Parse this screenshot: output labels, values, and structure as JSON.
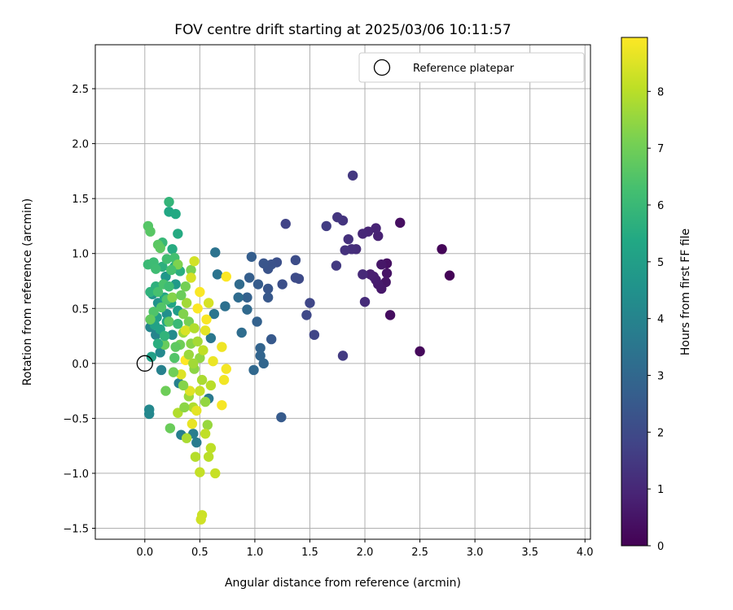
{
  "chart_data": {
    "type": "scatter",
    "title": "FOV centre drift starting at 2025/03/06 10:11:57",
    "xlabel": "Angular distance from reference (arcmin)",
    "ylabel": "Rotation from reference (arcmin)",
    "xlim": [
      -0.45,
      4.05
    ],
    "ylim": [
      -1.6,
      2.9
    ],
    "xticks": [
      0.0,
      0.5,
      1.0,
      1.5,
      2.0,
      2.5,
      3.0,
      3.5,
      4.0
    ],
    "xtick_labels": [
      "0.0",
      "0.5",
      "1.0",
      "1.5",
      "2.0",
      "2.5",
      "3.0",
      "3.5",
      "4.0"
    ],
    "yticks": [
      -1.5,
      -1.0,
      -0.5,
      0.0,
      0.5,
      1.0,
      1.5,
      2.0,
      2.5
    ],
    "ytick_labels": [
      "−1.5",
      "−1.0",
      "−0.5",
      "0.0",
      "0.5",
      "1.0",
      "1.5",
      "2.0",
      "2.5"
    ],
    "grid": true,
    "legend": {
      "position": "top-right",
      "entries": [
        "Reference platepar"
      ]
    },
    "colorbar": {
      "label": "Hours from first FF file",
      "colormap": "viridis",
      "range": [
        0,
        8.95
      ],
      "ticks": [
        0,
        1,
        2,
        3,
        4,
        5,
        6,
        7,
        8
      ],
      "tick_labels": [
        "0",
        "1",
        "2",
        "3",
        "4",
        "5",
        "6",
        "7",
        "8"
      ]
    },
    "reference_point": {
      "name": "Reference platepar",
      "x": 0.0,
      "y": 0.0
    },
    "points": [
      {
        "x": 2.77,
        "y": 0.8,
        "h": 0.05
      },
      {
        "x": 2.7,
        "y": 1.04,
        "h": 0.1
      },
      {
        "x": 2.5,
        "y": 0.11,
        "h": 0.2
      },
      {
        "x": 2.23,
        "y": 0.44,
        "h": 0.3
      },
      {
        "x": 2.32,
        "y": 1.28,
        "h": 0.35
      },
      {
        "x": 2.2,
        "y": 0.91,
        "h": 0.4
      },
      {
        "x": 2.2,
        "y": 0.82,
        "h": 0.45
      },
      {
        "x": 2.19,
        "y": 0.74,
        "h": 0.5
      },
      {
        "x": 2.15,
        "y": 0.9,
        "h": 0.55
      },
      {
        "x": 2.15,
        "y": 0.68,
        "h": 0.6
      },
      {
        "x": 2.12,
        "y": 0.72,
        "h": 0.65
      },
      {
        "x": 2.1,
        "y": 0.76,
        "h": 0.7
      },
      {
        "x": 2.08,
        "y": 0.79,
        "h": 0.75
      },
      {
        "x": 2.05,
        "y": 0.81,
        "h": 0.8
      },
      {
        "x": 2.12,
        "y": 1.16,
        "h": 0.85
      },
      {
        "x": 2.1,
        "y": 1.23,
        "h": 0.9
      },
      {
        "x": 2.03,
        "y": 1.2,
        "h": 0.95
      },
      {
        "x": 1.98,
        "y": 1.18,
        "h": 1.0
      },
      {
        "x": 1.98,
        "y": 0.81,
        "h": 1.05
      },
      {
        "x": 2.0,
        "y": 0.56,
        "h": 1.1
      },
      {
        "x": 1.92,
        "y": 1.04,
        "h": 1.15
      },
      {
        "x": 1.88,
        "y": 1.04,
        "h": 1.2
      },
      {
        "x": 1.85,
        "y": 1.13,
        "h": 1.25
      },
      {
        "x": 1.82,
        "y": 1.03,
        "h": 1.3
      },
      {
        "x": 1.8,
        "y": 1.3,
        "h": 1.35
      },
      {
        "x": 1.75,
        "y": 1.33,
        "h": 1.4
      },
      {
        "x": 1.89,
        "y": 1.71,
        "h": 1.45
      },
      {
        "x": 1.74,
        "y": 0.89,
        "h": 1.5
      },
      {
        "x": 1.8,
        "y": 0.07,
        "h": 1.55
      },
      {
        "x": 1.65,
        "y": 1.25,
        "h": 1.6
      },
      {
        "x": 1.28,
        "y": 1.27,
        "h": 1.8
      },
      {
        "x": 1.54,
        "y": 0.26,
        "h": 1.85
      },
      {
        "x": 1.5,
        "y": 0.55,
        "h": 1.9
      },
      {
        "x": 1.47,
        "y": 0.44,
        "h": 1.95
      },
      {
        "x": 1.4,
        "y": 0.77,
        "h": 2.0
      },
      {
        "x": 1.37,
        "y": 0.78,
        "h": 2.05
      },
      {
        "x": 1.37,
        "y": 0.94,
        "h": 2.1
      },
      {
        "x": 1.25,
        "y": 0.72,
        "h": 2.15
      },
      {
        "x": 1.2,
        "y": 0.92,
        "h": 2.2
      },
      {
        "x": 1.15,
        "y": 0.9,
        "h": 2.25
      },
      {
        "x": 1.12,
        "y": 0.86,
        "h": 2.3
      },
      {
        "x": 1.08,
        "y": 0.91,
        "h": 2.35
      },
      {
        "x": 1.12,
        "y": 0.68,
        "h": 2.4
      },
      {
        "x": 1.12,
        "y": 0.6,
        "h": 2.45
      },
      {
        "x": 1.15,
        "y": 0.22,
        "h": 2.5
      },
      {
        "x": 1.24,
        "y": -0.49,
        "h": 2.55
      },
      {
        "x": 1.03,
        "y": 0.72,
        "h": 2.6
      },
      {
        "x": 0.97,
        "y": 0.97,
        "h": 2.65
      },
      {
        "x": 0.95,
        "y": 0.78,
        "h": 2.7
      },
      {
        "x": 0.93,
        "y": 0.6,
        "h": 2.75
      },
      {
        "x": 1.02,
        "y": 0.38,
        "h": 2.8
      },
      {
        "x": 1.05,
        "y": 0.14,
        "h": 2.85
      },
      {
        "x": 1.05,
        "y": 0.07,
        "h": 2.9
      },
      {
        "x": 1.08,
        "y": 0.0,
        "h": 2.95
      },
      {
        "x": 0.99,
        "y": -0.06,
        "h": 3.0
      },
      {
        "x": 0.93,
        "y": 0.49,
        "h": 3.05
      },
      {
        "x": 0.86,
        "y": 0.72,
        "h": 3.1
      },
      {
        "x": 0.85,
        "y": 0.6,
        "h": 3.15
      },
      {
        "x": 0.88,
        "y": 0.28,
        "h": 3.2
      },
      {
        "x": 0.73,
        "y": 0.52,
        "h": 3.3
      },
      {
        "x": 0.64,
        "y": 1.01,
        "h": 3.4
      },
      {
        "x": 0.66,
        "y": 0.81,
        "h": 3.45
      },
      {
        "x": 0.63,
        "y": 0.45,
        "h": 3.5
      },
      {
        "x": 0.6,
        "y": 0.23,
        "h": 3.55
      },
      {
        "x": 0.58,
        "y": -0.32,
        "h": 3.6
      },
      {
        "x": 0.47,
        "y": -0.72,
        "h": 3.7
      },
      {
        "x": 0.44,
        "y": -0.64,
        "h": 3.75
      },
      {
        "x": 0.33,
        "y": -0.65,
        "h": 3.8
      },
      {
        "x": 0.31,
        "y": -0.18,
        "h": 3.85
      },
      {
        "x": 0.15,
        "y": -0.06,
        "h": 3.9
      },
      {
        "x": 0.1,
        "y": 0.26,
        "h": 4.0
      },
      {
        "x": 0.05,
        "y": 0.33,
        "h": 4.05
      },
      {
        "x": 0.04,
        "y": -0.46,
        "h": 4.1
      },
      {
        "x": 0.04,
        "y": -0.42,
        "h": 4.15
      },
      {
        "x": 0.14,
        "y": 0.1,
        "h": 4.2
      },
      {
        "x": 0.25,
        "y": 0.26,
        "h": 4.3
      },
      {
        "x": 0.2,
        "y": 0.45,
        "h": 4.4
      },
      {
        "x": 0.12,
        "y": 0.55,
        "h": 4.5
      },
      {
        "x": 0.07,
        "y": 0.63,
        "h": 4.6
      },
      {
        "x": 0.19,
        "y": 0.79,
        "h": 4.7
      },
      {
        "x": 0.28,
        "y": 0.72,
        "h": 4.8
      },
      {
        "x": 0.3,
        "y": 0.48,
        "h": 4.9
      },
      {
        "x": 0.11,
        "y": 0.42,
        "h": 5.0
      },
      {
        "x": 0.06,
        "y": 0.06,
        "h": 5.05
      },
      {
        "x": 0.09,
        "y": 0.35,
        "h": 5.1
      },
      {
        "x": 0.14,
        "y": 0.31,
        "h": 5.15
      },
      {
        "x": 0.2,
        "y": 0.38,
        "h": 5.2
      },
      {
        "x": 0.24,
        "y": 0.55,
        "h": 5.25
      },
      {
        "x": 0.18,
        "y": 0.6,
        "h": 5.3
      },
      {
        "x": 0.22,
        "y": 1.38,
        "h": 5.35
      },
      {
        "x": 0.28,
        "y": 1.36,
        "h": 5.4
      },
      {
        "x": 0.3,
        "y": 1.18,
        "h": 5.45
      },
      {
        "x": 0.25,
        "y": 1.04,
        "h": 5.5
      },
      {
        "x": 0.27,
        "y": 0.88,
        "h": 5.55
      },
      {
        "x": 0.32,
        "y": 0.84,
        "h": 5.6
      },
      {
        "x": 0.16,
        "y": 0.88,
        "h": 5.65
      },
      {
        "x": 0.1,
        "y": 0.7,
        "h": 5.7
      },
      {
        "x": 0.05,
        "y": 0.65,
        "h": 5.75
      },
      {
        "x": 0.22,
        "y": 1.47,
        "h": 5.85
      },
      {
        "x": 0.16,
        "y": 1.1,
        "h": 5.95
      },
      {
        "x": 0.03,
        "y": 0.9,
        "h": 6.05
      },
      {
        "x": 0.08,
        "y": 0.92,
        "h": 6.1
      },
      {
        "x": 0.1,
        "y": 0.86,
        "h": 6.15
      },
      {
        "x": 0.2,
        "y": 0.95,
        "h": 6.2
      },
      {
        "x": 0.27,
        "y": 0.96,
        "h": 6.25
      },
      {
        "x": 0.12,
        "y": 0.65,
        "h": 6.3
      },
      {
        "x": 0.17,
        "y": 0.72,
        "h": 6.35
      },
      {
        "x": 0.2,
        "y": 0.58,
        "h": 6.4
      },
      {
        "x": 0.08,
        "y": 0.47,
        "h": 6.45
      },
      {
        "x": 0.15,
        "y": 0.51,
        "h": 6.5
      },
      {
        "x": 0.03,
        "y": 1.25,
        "h": 6.55
      },
      {
        "x": 0.05,
        "y": 1.2,
        "h": 6.6
      },
      {
        "x": 0.12,
        "y": 1.08,
        "h": 6.65
      },
      {
        "x": 0.14,
        "y": 1.05,
        "h": 6.7
      },
      {
        "x": 0.22,
        "y": 0.38,
        "h": 6.75
      },
      {
        "x": 0.05,
        "y": 0.4,
        "h": 6.8
      },
      {
        "x": 0.18,
        "y": 0.17,
        "h": 6.85
      },
      {
        "x": 0.23,
        "y": -0.59,
        "h": 6.9
      },
      {
        "x": 0.19,
        "y": -0.25,
        "h": 6.95
      },
      {
        "x": 0.32,
        "y": 0.17,
        "h": 7.0
      },
      {
        "x": 0.37,
        "y": 0.7,
        "h": 7.05
      },
      {
        "x": 0.4,
        "y": 0.38,
        "h": 7.1
      },
      {
        "x": 0.42,
        "y": 0.85,
        "h": 7.15
      },
      {
        "x": 0.3,
        "y": 0.9,
        "h": 7.2
      },
      {
        "x": 0.35,
        "y": 0.45,
        "h": 7.25
      },
      {
        "x": 0.25,
        "y": 0.6,
        "h": 7.3
      },
      {
        "x": 0.42,
        "y": 0.18,
        "h": 7.35
      },
      {
        "x": 0.45,
        "y": -0.05,
        "h": 7.4
      },
      {
        "x": 0.5,
        "y": 0.05,
        "h": 7.45
      },
      {
        "x": 0.55,
        "y": -0.35,
        "h": 7.5
      },
      {
        "x": 0.57,
        "y": -0.56,
        "h": 7.55
      },
      {
        "x": 0.4,
        "y": -0.3,
        "h": 7.6
      },
      {
        "x": 0.35,
        "y": 0.28,
        "h": 7.65
      },
      {
        "x": 0.38,
        "y": 0.55,
        "h": 7.7
      },
      {
        "x": 0.48,
        "y": 0.2,
        "h": 7.75
      },
      {
        "x": 0.52,
        "y": -0.15,
        "h": 7.8
      },
      {
        "x": 0.44,
        "y": -0.4,
        "h": 7.85
      },
      {
        "x": 0.3,
        "y": -0.45,
        "h": 7.9
      },
      {
        "x": 0.46,
        "y": -0.85,
        "h": 7.95
      },
      {
        "x": 0.58,
        "y": -0.85,
        "h": 8.0
      },
      {
        "x": 0.6,
        "y": -0.77,
        "h": 8.05
      },
      {
        "x": 0.55,
        "y": -0.64,
        "h": 8.1
      },
      {
        "x": 0.5,
        "y": -0.99,
        "h": 8.15
      },
      {
        "x": 0.64,
        "y": -1.0,
        "h": 8.2
      },
      {
        "x": 0.52,
        "y": -1.38,
        "h": 8.25
      },
      {
        "x": 0.51,
        "y": -1.42,
        "h": 8.3
      },
      {
        "x": 0.45,
        "y": 0.93,
        "h": 8.35
      },
      {
        "x": 0.42,
        "y": 0.78,
        "h": 8.4
      },
      {
        "x": 0.37,
        "y": 0.3,
        "h": 8.45
      },
      {
        "x": 0.33,
        "y": -0.1,
        "h": 8.5
      },
      {
        "x": 0.41,
        "y": -0.25,
        "h": 8.55
      },
      {
        "x": 0.47,
        "y": -0.43,
        "h": 8.6
      },
      {
        "x": 0.43,
        "y": -0.55,
        "h": 8.65
      },
      {
        "x": 0.62,
        "y": 0.02,
        "h": 8.7
      },
      {
        "x": 0.7,
        "y": 0.15,
        "h": 8.75
      },
      {
        "x": 0.72,
        "y": -0.15,
        "h": 8.8
      },
      {
        "x": 0.74,
        "y": -0.05,
        "h": 8.82
      },
      {
        "x": 0.7,
        "y": -0.38,
        "h": 8.85
      },
      {
        "x": 0.56,
        "y": 0.4,
        "h": 8.88
      },
      {
        "x": 0.5,
        "y": 0.65,
        "h": 8.9
      },
      {
        "x": 0.48,
        "y": 0.5,
        "h": 8.92
      },
      {
        "x": 0.74,
        "y": 0.79,
        "h": 8.94
      },
      {
        "x": 0.37,
        "y": 0.03,
        "h": 8.95
      },
      {
        "x": 0.3,
        "y": 0.36,
        "h": 6.0
      },
      {
        "x": 0.26,
        "y": -0.08,
        "h": 7.0
      },
      {
        "x": 0.35,
        "y": -0.2,
        "h": 7.3
      },
      {
        "x": 0.4,
        "y": 0.08,
        "h": 7.6
      },
      {
        "x": 0.27,
        "y": 0.05,
        "h": 6.5
      },
      {
        "x": 0.33,
        "y": 0.62,
        "h": 6.9
      },
      {
        "x": 0.45,
        "y": 0.32,
        "h": 7.9
      },
      {
        "x": 0.53,
        "y": 0.12,
        "h": 8.1
      },
      {
        "x": 0.58,
        "y": 0.55,
        "h": 8.4
      },
      {
        "x": 0.6,
        "y": -0.2,
        "h": 8.0
      },
      {
        "x": 0.38,
        "y": -0.68,
        "h": 7.8
      },
      {
        "x": 0.18,
        "y": 0.25,
        "h": 5.8
      },
      {
        "x": 0.12,
        "y": 0.18,
        "h": 5.6
      },
      {
        "x": 0.22,
        "y": 0.7,
        "h": 6.1
      },
      {
        "x": 0.24,
        "y": 0.85,
        "h": 6.3
      },
      {
        "x": 0.36,
        "y": -0.4,
        "h": 7.4
      },
      {
        "x": 0.5,
        "y": -0.25,
        "h": 8.2
      },
      {
        "x": 0.28,
        "y": 0.15,
        "h": 6.7
      },
      {
        "x": 0.44,
        "y": 0.0,
        "h": 7.7
      },
      {
        "x": 0.55,
        "y": 0.3,
        "h": 8.6
      }
    ]
  }
}
